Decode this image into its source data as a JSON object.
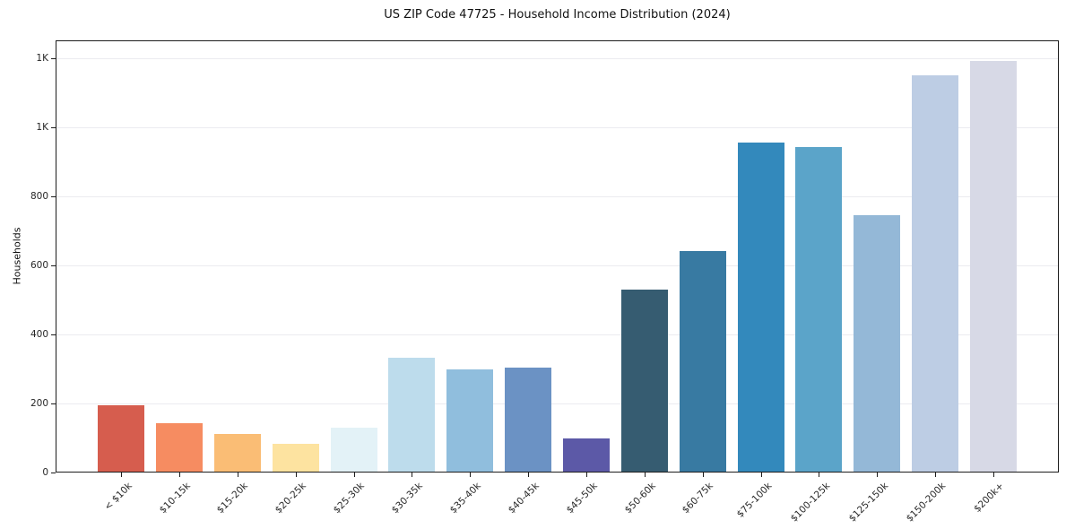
{
  "title": "US ZIP Code 47725 - Household Income Distribution (2024)",
  "chart_data": {
    "type": "bar",
    "title": "US ZIP Code 47725 - Household Income Distribution (2024)",
    "xlabel": "",
    "ylabel": "Households",
    "ylim": [
      0,
      1252
    ],
    "grid": true,
    "legend": false,
    "categories": [
      "< $10k",
      "$10-15k",
      "$15-20k",
      "$20-25k",
      "$25-30k",
      "$30-35k",
      "$35-40k",
      "$40-45k",
      "$45-50k",
      "$50-60k",
      "$60-75k",
      "$75-100k",
      "$100-125k",
      "$125-150k",
      "$150-200k",
      "$200k+"
    ],
    "values": [
      196,
      144,
      111,
      84,
      131,
      332,
      298,
      303,
      100,
      530,
      641,
      957,
      944,
      745,
      1150,
      1192
    ],
    "bar_colors": [
      "#d65d4e",
      "#f68c61",
      "#fabd75",
      "#fde3a0",
      "#e3f2f7",
      "#bddcec",
      "#90bedd",
      "#6b92c4",
      "#5c59a7",
      "#365c71",
      "#387aa2",
      "#3389bc",
      "#5ba4c9",
      "#94b8d7",
      "#bdcde4",
      "#d7d9e6"
    ],
    "ytick_values": [
      0,
      200,
      400,
      600,
      800,
      1000,
      1200
    ],
    "ytick_labels": [
      "0",
      "200",
      "400",
      "600",
      "800",
      "1K",
      "1K"
    ],
    "grid_color": "#ebebf0",
    "spine_color": "#1c1c1c"
  }
}
